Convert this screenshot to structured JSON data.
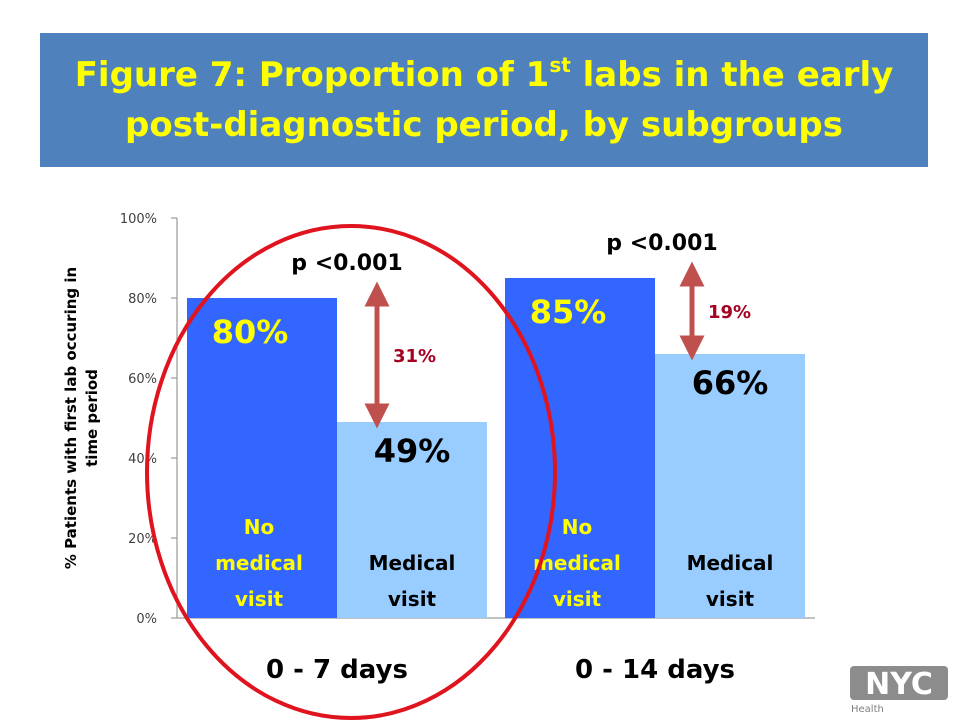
{
  "title": {
    "line1_pre": "Figure 7: Proportion of 1",
    "line1_sup": "st",
    "line1_post": " labs in the early",
    "line2": "post-diagnostic period, by subgroups"
  },
  "colors": {
    "banner": "#4f81bd",
    "title_text": "#ffff00",
    "no_medical_visit": "#3366ff",
    "medical_visit": "#99ccff",
    "arrow": "#c0504d",
    "circle": "#e0141e",
    "diff_text": "#a50021"
  },
  "chart_data": {
    "type": "bar",
    "title": "Figure 7: Proportion of 1st labs in the early post-diagnostic period, by subgroups",
    "xlabel": "",
    "ylabel": "% Patients with first lab occuring in time period",
    "ylim": [
      0,
      100
    ],
    "yticks": [
      "0%",
      "20%",
      "40%",
      "60%",
      "80%",
      "100%"
    ],
    "categories": [
      "0 - 7 days",
      "0 - 14 days"
    ],
    "series": [
      {
        "name": "No medical visit",
        "values": [
          80,
          85
        ],
        "value_labels": [
          "80%",
          "85%"
        ],
        "color": "#3366ff"
      },
      {
        "name": "Medical visit",
        "values": [
          49,
          66
        ],
        "value_labels": [
          "49%",
          "66%"
        ],
        "color": "#99ccff"
      }
    ],
    "annotations": [
      {
        "category": "0 - 7 days",
        "pvalue": "p <0.001",
        "difference": "31%"
      },
      {
        "category": "0 - 14 days",
        "pvalue": "p <0.001",
        "difference": "19%"
      }
    ],
    "highlight": "0 - 7 days circled in red",
    "grid": false,
    "legend": "none"
  },
  "logo": {
    "text": "NYC",
    "subtext": "Health"
  }
}
